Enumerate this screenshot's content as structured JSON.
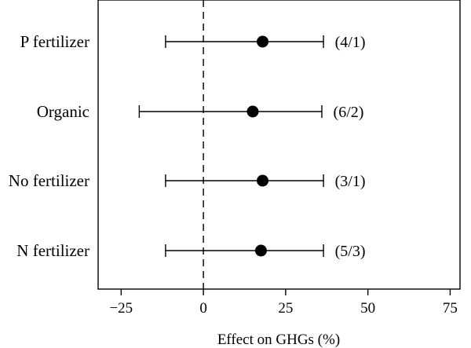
{
  "chart_data": {
    "type": "scatter",
    "subtype": "forest-plot",
    "title": "",
    "xlabel": "Effect on GHGs (%)",
    "ylabel": "",
    "xlim": [
      -32,
      78
    ],
    "xticks": [
      -25,
      0,
      25,
      50,
      75
    ],
    "xtick_labels": [
      "−25",
      "0",
      "25",
      "50",
      "75"
    ],
    "reference_line": {
      "x": 0,
      "style": "dashed"
    },
    "grid": false,
    "legend": "none",
    "categories": [
      "P fertilizer",
      "Organic",
      "No fertilizer",
      "N fertilizer"
    ],
    "points": [
      {
        "label": "P fertilizer",
        "mean": 18,
        "lower": -11.5,
        "upper": 36.5,
        "annotation": "(4/1)"
      },
      {
        "label": "Organic",
        "mean": 15,
        "lower": -19.5,
        "upper": 36,
        "annotation": "(6/2)"
      },
      {
        "label": "No fertilizer",
        "mean": 18,
        "lower": -11.5,
        "upper": 36.5,
        "annotation": "(3/1)"
      },
      {
        "label": "N fertilizer",
        "mean": 17.5,
        "lower": -11.5,
        "upper": 36.5,
        "annotation": "(5/3)"
      }
    ],
    "colors": {
      "marker": "#000000",
      "line": "#000000"
    }
  }
}
